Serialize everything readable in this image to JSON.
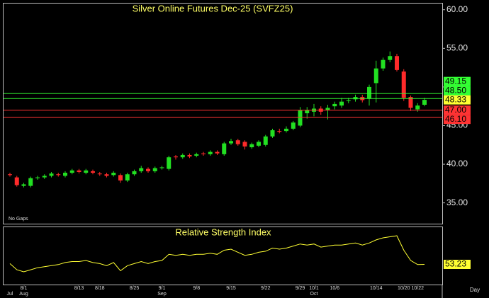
{
  "chart_data": [
    {
      "type": "candlestick",
      "title": "Silver Online Futures Dec-25 (SVFZ25)",
      "note": "No Gaps",
      "categories": [
        null,
        null,
        "8/1",
        null,
        null,
        null,
        null,
        null,
        null,
        null,
        "8/13",
        null,
        null,
        "8/18",
        null,
        null,
        null,
        null,
        "8/25",
        null,
        null,
        null,
        "9/1",
        null,
        null,
        null,
        null,
        "9/8",
        null,
        null,
        null,
        null,
        "9/15",
        null,
        null,
        null,
        null,
        "9/22",
        null,
        null,
        null,
        null,
        "9/29",
        null,
        "10/1",
        null,
        null,
        "10/6",
        null,
        null,
        null,
        null,
        null,
        "10/14",
        null,
        null,
        null,
        "10/20",
        null,
        "10/22",
        null
      ],
      "month_labels": [
        "Jul",
        null,
        "Aug",
        null,
        null,
        null,
        null,
        null,
        null,
        null,
        null,
        null,
        null,
        null,
        null,
        null,
        null,
        null,
        null,
        null,
        null,
        null,
        "Sep",
        null,
        null,
        null,
        null,
        null,
        null,
        null,
        null,
        null,
        null,
        null,
        null,
        null,
        null,
        null,
        null,
        null,
        null,
        null,
        null,
        null,
        "Oct",
        null,
        null,
        null,
        null,
        null,
        null,
        null,
        null,
        null,
        null,
        null,
        null,
        null,
        null,
        null,
        null
      ],
      "open": [
        38.7,
        38.3,
        37.2,
        37.2,
        38.2,
        38.3,
        38.5,
        38.7,
        38.5,
        38.9,
        39.2,
        38.9,
        39.1,
        38.8,
        38.7,
        38.6,
        38.6,
        37.9,
        38.7,
        39.1,
        39.4,
        39.1,
        39.5,
        39.4,
        41.0,
        40.9,
        41.2,
        41.1,
        41.4,
        41.3,
        41.6,
        41.3,
        42.7,
        43.1,
        42.9,
        42.2,
        42.4,
        42.5,
        43.6,
        44.3,
        44.3,
        44.6,
        45.0,
        46.6,
        46.8,
        47.2,
        47.0,
        47.5,
        47.6,
        48.2,
        48.4,
        48.7,
        48.5,
        50.5,
        52.4,
        53.5,
        54.0,
        52.0,
        48.7,
        47.1,
        47.7
      ],
      "high": [
        38.9,
        38.5,
        37.6,
        38.4,
        38.5,
        38.7,
        39.0,
        38.9,
        39.1,
        39.4,
        39.4,
        39.4,
        39.3,
        39.0,
        38.9,
        39.1,
        38.8,
        38.9,
        39.3,
        39.8,
        39.6,
        39.7,
        39.8,
        41.1,
        41.2,
        41.4,
        41.4,
        41.5,
        41.6,
        41.8,
        41.8,
        42.9,
        43.3,
        43.3,
        43.1,
        42.8,
        43.1,
        43.8,
        44.6,
        44.6,
        44.9,
        45.6,
        47.4,
        47.4,
        47.8,
        47.5,
        47.7,
        48.1,
        48.6,
        48.6,
        49.0,
        49.0,
        50.3,
        53.4,
        53.8,
        54.6,
        54.3,
        52.3,
        48.9,
        47.9,
        48.6
      ],
      "low": [
        38.4,
        37.1,
        37.0,
        37.0,
        38.0,
        38.1,
        38.3,
        38.4,
        38.3,
        38.7,
        38.8,
        38.7,
        38.7,
        38.5,
        38.3,
        38.4,
        37.6,
        37.7,
        38.5,
        38.9,
        38.9,
        38.9,
        39.3,
        39.2,
        40.6,
        40.7,
        40.8,
        40.9,
        41.1,
        41.1,
        41.2,
        41.1,
        42.5,
        42.4,
        41.9,
        42.0,
        42.2,
        42.3,
        43.4,
        44.0,
        44.1,
        44.4,
        44.8,
        45.9,
        46.2,
        46.4,
        45.8,
        47.1,
        47.3,
        47.9,
        48.1,
        48.0,
        47.6,
        48.0,
        52.1,
        53.2,
        52.0,
        48.2,
        46.9,
        46.8,
        47.5
      ],
      "close": [
        38.6,
        37.3,
        37.4,
        38.2,
        38.3,
        38.5,
        38.8,
        38.6,
        38.9,
        39.2,
        39.0,
        39.2,
        38.9,
        38.7,
        38.5,
        38.9,
        37.9,
        38.7,
        39.1,
        39.5,
        39.1,
        39.5,
        39.6,
        40.9,
        40.9,
        41.2,
        41.0,
        41.3,
        41.3,
        41.6,
        41.4,
        42.7,
        43.0,
        42.6,
        42.3,
        42.6,
        42.9,
        43.6,
        44.4,
        44.2,
        44.6,
        45.4,
        47.0,
        47.0,
        47.2,
        46.8,
        47.3,
        47.8,
        48.1,
        48.3,
        48.7,
        48.3,
        50.0,
        52.4,
        53.5,
        54.0,
        52.2,
        48.6,
        47.3,
        47.6,
        48.33
      ],
      "up_color": "#22e022",
      "down_color": "#ff2a2a",
      "last_color": "#ffff33",
      "ylim": [
        32.4,
        60.8
      ],
      "yticks": [
        {
          "value": 35,
          "label": "35.00"
        },
        {
          "value": 40,
          "label": "40.00"
        },
        {
          "value": 45,
          "label": "45.00"
        },
        {
          "value": 50,
          "label": "50.00"
        },
        {
          "value": 55,
          "label": "55.00"
        },
        {
          "value": 60,
          "label": "60.00"
        }
      ],
      "levels": [
        {
          "value": 49.15,
          "label": "49.15",
          "color": "#33ff33"
        },
        {
          "value": 48.5,
          "label": "48.50",
          "color": "#33ff33"
        },
        {
          "value": 47,
          "label": "47.00",
          "color": "#ff3333"
        },
        {
          "value": 46.1,
          "label": "46.10",
          "color": "#ff3333"
        }
      ]
    },
    {
      "type": "line",
      "title": "Relative Strength Index",
      "color": "#ffff33",
      "ylim": [
        35,
        90
      ],
      "values": [
        54,
        48,
        46,
        48,
        50,
        51,
        52,
        53,
        55,
        56,
        56,
        57,
        55,
        54,
        52,
        55,
        47,
        52,
        54,
        56,
        54,
        56,
        57,
        63,
        62,
        63,
        62,
        63,
        63,
        64,
        63,
        67,
        68,
        65,
        62,
        63,
        65,
        66,
        69,
        68,
        69,
        71,
        73,
        72,
        73,
        70,
        71,
        72,
        72,
        73,
        74,
        72,
        74,
        77,
        79,
        80,
        81,
        67,
        57,
        53,
        53.23
      ]
    }
  ],
  "period": "Day"
}
